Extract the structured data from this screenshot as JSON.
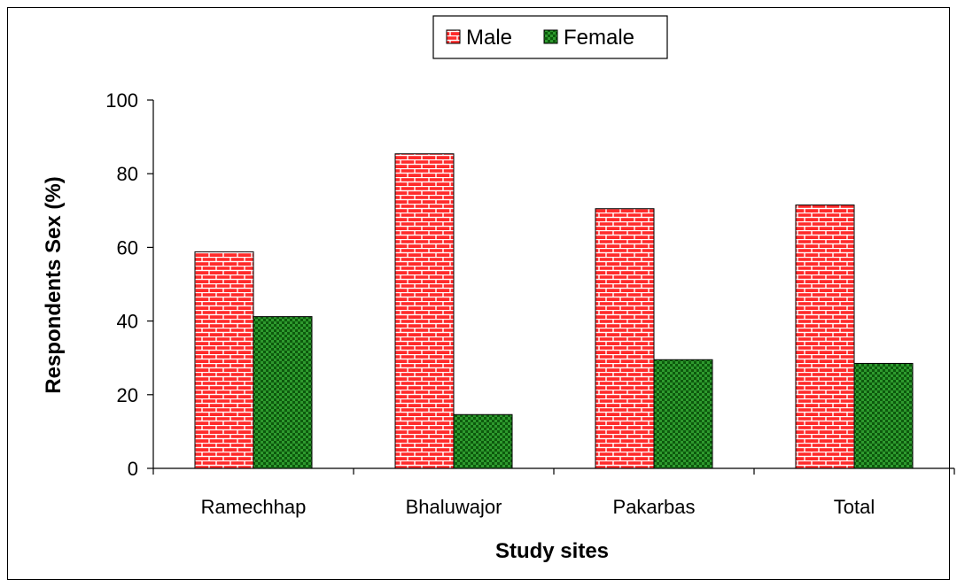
{
  "chart_data": {
    "type": "bar",
    "title": "",
    "xlabel": "Study sites",
    "ylabel": "Respondents Sex (%)",
    "categories": [
      "Ramechhap",
      "Bhaluwajor",
      "Pakarbas",
      "Total"
    ],
    "series": [
      {
        "name": "Male",
        "values": [
          58.8,
          85.4,
          70.5,
          71.5
        ],
        "color": "#ff2a2a",
        "pattern": "brick"
      },
      {
        "name": "Female",
        "values": [
          41.2,
          14.6,
          29.5,
          28.5
        ],
        "color": "#1a7a1a",
        "pattern": "checker"
      }
    ],
    "ylim": [
      0,
      100
    ],
    "yticks": [
      "0",
      "20",
      "40",
      "60",
      "80",
      "100"
    ],
    "grid": false,
    "legend": "top-center"
  }
}
